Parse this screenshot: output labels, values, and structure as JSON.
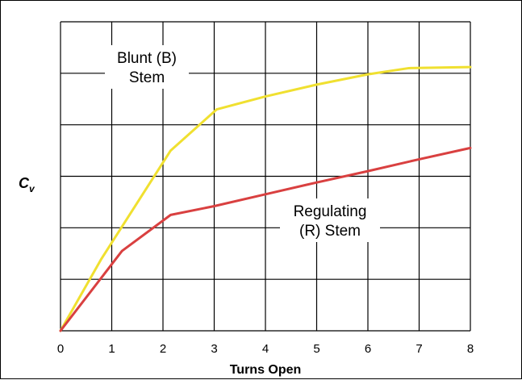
{
  "chart_data": {
    "type": "line",
    "title": "",
    "xlabel": "Turns Open",
    "ylabel": "C",
    "ylabel_subscript": "v",
    "xlim": [
      0,
      8
    ],
    "x_ticks": [
      "0",
      "1",
      "2",
      "3",
      "4",
      "5",
      "6",
      "7",
      "8"
    ],
    "y_ticks_shown": false,
    "y_gridlines": 6,
    "grid": true,
    "series": [
      {
        "name": "Blunt (B) Stem",
        "color": "#f0e030",
        "points": [
          [
            0,
            0
          ],
          [
            0.8,
            1.4
          ],
          [
            2.15,
            3.5
          ],
          [
            3.05,
            4.3
          ],
          [
            4,
            4.55
          ],
          [
            5,
            4.78
          ],
          [
            6,
            4.98
          ],
          [
            6.8,
            5.1
          ],
          [
            8,
            5.12
          ]
        ]
      },
      {
        "name": "Regulating (R) Stem",
        "color": "#d94040",
        "points": [
          [
            0,
            0
          ],
          [
            1.2,
            1.55
          ],
          [
            2.15,
            2.25
          ],
          [
            3,
            2.42
          ],
          [
            4,
            2.65
          ],
          [
            5,
            2.88
          ],
          [
            6,
            3.1
          ],
          [
            7,
            3.33
          ],
          [
            8,
            3.55
          ]
        ]
      }
    ],
    "annotations": [
      {
        "lines": [
          "Blunt (B)",
          "Stem"
        ]
      },
      {
        "lines": [
          "Regulating",
          "(R) Stem"
        ]
      }
    ]
  }
}
